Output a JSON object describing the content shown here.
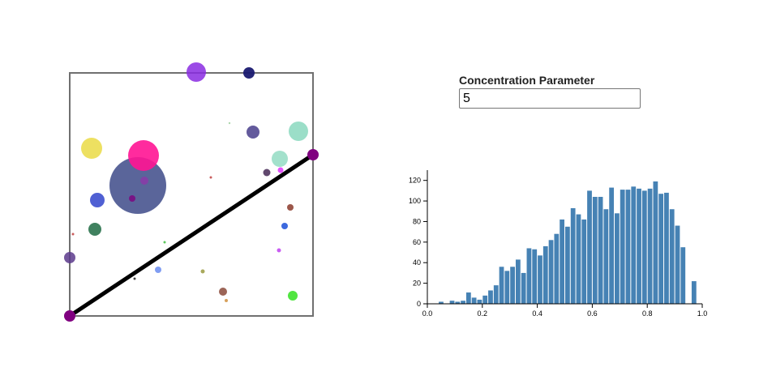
{
  "concentration": {
    "label": "Concentration Parameter",
    "value": "5"
  },
  "colors": {
    "bar": "#4682b4",
    "line": "#000000",
    "endpoint": "#800080",
    "frame": "#707070"
  },
  "chart_data": {
    "type": "bar",
    "title": "",
    "xlabel": "",
    "ylabel": "",
    "xlim": [
      0,
      1
    ],
    "ylim": [
      0,
      130
    ],
    "xticks": [
      "0.0",
      "0.2",
      "0.4",
      "0.6",
      "0.8",
      "1.0"
    ],
    "yticks": [
      "0",
      "20",
      "40",
      "60",
      "80",
      "100",
      "120"
    ],
    "bin_width": 0.02,
    "bin_starts": [
      0,
      0.02,
      0.04,
      0.06,
      0.08,
      0.1,
      0.12,
      0.14,
      0.16,
      0.18,
      0.2,
      0.22,
      0.24,
      0.26,
      0.28,
      0.3,
      0.32,
      0.34,
      0.36,
      0.38,
      0.4,
      0.42,
      0.44,
      0.46,
      0.48,
      0.5,
      0.52,
      0.54,
      0.56,
      0.58,
      0.6,
      0.62,
      0.64,
      0.66,
      0.68,
      0.7,
      0.72,
      0.74,
      0.76,
      0.78,
      0.8,
      0.82,
      0.84,
      0.86,
      0.88,
      0.9,
      0.92,
      0.94,
      0.96,
      0.98
    ],
    "values": [
      0,
      0,
      2,
      0,
      3,
      2,
      3,
      11,
      6,
      4,
      8,
      13,
      18,
      36,
      32,
      36,
      43,
      30,
      54,
      53,
      47,
      56,
      62,
      68,
      82,
      75,
      93,
      87,
      82,
      110,
      104,
      104,
      92,
      113,
      88,
      111,
      111,
      114,
      112,
      110,
      112,
      119,
      107,
      108,
      92,
      76,
      55,
      0,
      22,
      0
    ]
  }
}
